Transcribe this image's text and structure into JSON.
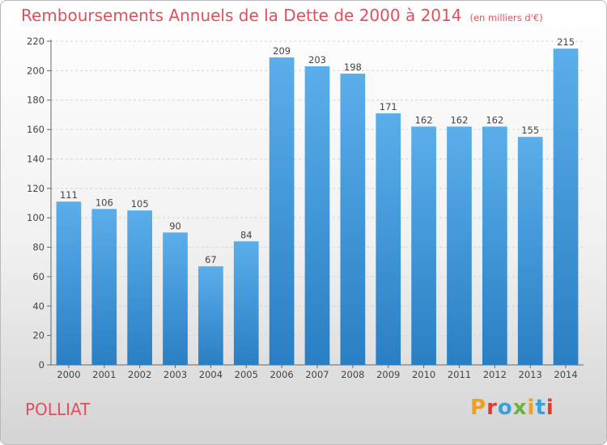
{
  "chart_data": {
    "type": "bar",
    "title": "Remboursements Annuels de la Dette de 2000 à 2014",
    "subtitle": "(en milliers d'€)",
    "categories": [
      "2000",
      "2001",
      "2002",
      "2003",
      "2004",
      "2005",
      "2006",
      "2007",
      "2008",
      "2009",
      "2010",
      "2011",
      "2012",
      "2013",
      "2014"
    ],
    "values": [
      111,
      106,
      105,
      90,
      67,
      84,
      209,
      203,
      198,
      171,
      162,
      162,
      162,
      155,
      215
    ],
    "ylim": [
      0,
      220
    ],
    "yticks": [
      0,
      20,
      40,
      60,
      80,
      100,
      120,
      140,
      160,
      180,
      200,
      220
    ],
    "grid": true,
    "bar_color": "#3a95d8"
  },
  "footer": {
    "commune": "POLLIAT",
    "brand": "Proxiti",
    "brand_colors": [
      "#f0a01e",
      "#e23b2e",
      "#3aa0d8",
      "#6ab43e",
      "#f0a01e",
      "#3aa0d8",
      "#e23b2e"
    ]
  },
  "colors": {
    "title": "#e0505c"
  }
}
